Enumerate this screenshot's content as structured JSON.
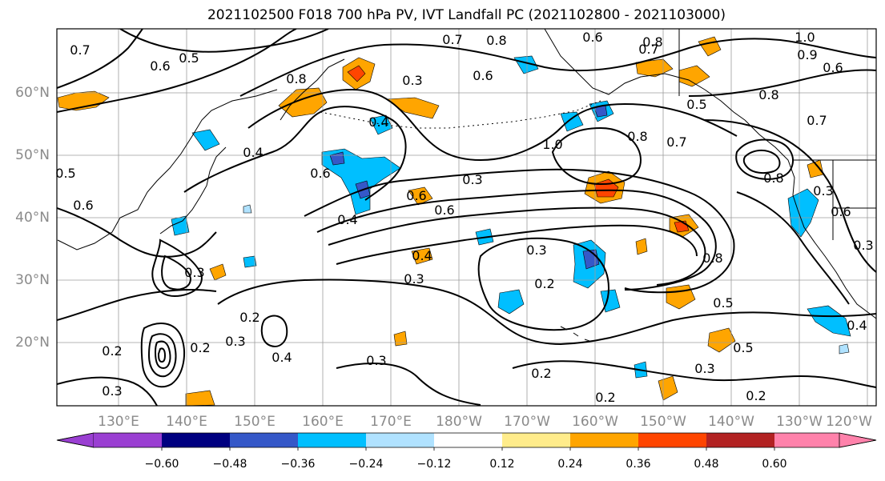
{
  "title": "2021102500 F018 700 hPa PV, IVT Landfall PC (2021102800 - 2021103000)",
  "map": {
    "lat_labels": [
      "60°N",
      "50°N",
      "40°N",
      "30°N",
      "20°N"
    ],
    "lon_labels": [
      "130°E",
      "140°E",
      "150°E",
      "160°E",
      "170°E",
      "180°W",
      "170°W",
      "160°W",
      "150°W",
      "140°W",
      "130°W",
      "120°W"
    ],
    "contour_labels": [
      "0.7",
      "0.6",
      "0.5",
      "0.8",
      "0.7",
      "0.8",
      "0.6",
      "0.8",
      "0.7",
      "1.0",
      "0.9",
      "0.6",
      "0.3",
      "0.6",
      "0.8",
      "0.4",
      "0.4",
      "0.7",
      "0.5",
      "0.6",
      "0.3",
      "0.8",
      "0.7",
      "1.0",
      "0.5",
      "0.6",
      "0.6",
      "0.4",
      "0.6",
      "0.8",
      "0.3",
      "0.3",
      "0.6",
      "0.4",
      "0.3",
      "0.8",
      "0.2",
      "0.5",
      "0.3",
      "0.2",
      "0.4",
      "0.3",
      "0.2",
      "0.3",
      "0.5",
      "0.2",
      "0.3",
      "0.2",
      "0.2",
      "0.3",
      "0.4",
      "0.3",
      "0.2"
    ]
  },
  "colorbar": {
    "colors": [
      "#9a3fd2",
      "#000080",
      "#3558c8",
      "#00bfff",
      "#b0e2ff",
      "#ffffff",
      "#ffec8b",
      "#ffa500",
      "#ff4500",
      "#b22222",
      "#ff82ab"
    ],
    "ticks": [
      "−0.60",
      "−0.48",
      "−0.36",
      "−0.24",
      "−0.12",
      "0.12",
      "0.24",
      "0.36",
      "0.48",
      "0.60"
    ]
  },
  "shading_colors": {
    "neg_light": "#b0e2ff",
    "neg": "#00bfff",
    "neg_mid": "#3558c8",
    "pos_light": "#ffec8b",
    "pos": "#ffa500",
    "pos_mid": "#ff4500"
  }
}
